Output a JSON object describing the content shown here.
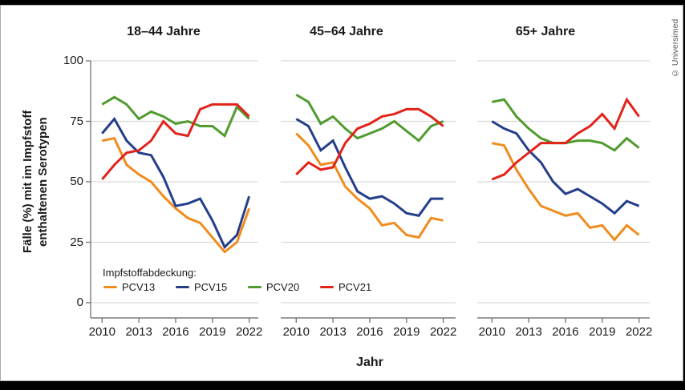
{
  "ui": {
    "copyright": "© Universimed",
    "colors": {
      "background": "#ffffff",
      "frame_bars": "#000000",
      "text": "#1a1a1a",
      "gridline": "#d9d9d9",
      "axis": "#7a7a7a"
    }
  },
  "chart_data": {
    "type": "line",
    "title": "",
    "xlabel": "Jahr",
    "ylabel": "Fälle (%) mit im Impfstoff enthaltenen Serotypen",
    "ylabel_lines": [
      "Fälle (%) mit im Impfstoff",
      "enthaltenen Serotypen"
    ],
    "legend_title": "Impfstoffabdeckung:",
    "legend_position": "bottom-left inside first panel",
    "grid": true,
    "ylim": [
      0,
      100
    ],
    "y_ticks": [
      100,
      75,
      50,
      25,
      0
    ],
    "x": [
      2010,
      2011,
      2012,
      2013,
      2014,
      2015,
      2016,
      2017,
      2018,
      2019,
      2020,
      2021,
      2022
    ],
    "x_tick_labels": [
      "2010",
      "2013",
      "2016",
      "2019",
      "2022"
    ],
    "series_order": [
      "PCV13",
      "PCV15",
      "PCV20",
      "PCV21"
    ],
    "series_colors": {
      "PCV13": "#F08C1E",
      "PCV15": "#243E8B",
      "PCV20": "#509B2F",
      "PCV21": "#E2231A"
    },
    "panels": [
      {
        "title": "18–44 Jahre",
        "series": {
          "PCV13": [
            67,
            68,
            57,
            53,
            50,
            44,
            39,
            35,
            33,
            27,
            21,
            25,
            39
          ],
          "PCV15": [
            70,
            76,
            67,
            62,
            61,
            52,
            40,
            41,
            43,
            34,
            23,
            28,
            44
          ],
          "PCV20": [
            82,
            85,
            82,
            76,
            79,
            77,
            74,
            75,
            73,
            73,
            69,
            81,
            76
          ],
          "PCV21": [
            51,
            57,
            62,
            63,
            67,
            75,
            70,
            69,
            80,
            82,
            82,
            82,
            77
          ]
        }
      },
      {
        "title": "45–64 Jahre",
        "series": {
          "PCV13": [
            70,
            65,
            57,
            58,
            48,
            43,
            39,
            32,
            33,
            28,
            27,
            35,
            34
          ],
          "PCV15": [
            76,
            73,
            63,
            67,
            56,
            46,
            43,
            44,
            41,
            37,
            36,
            43,
            43
          ],
          "PCV20": [
            86,
            83,
            74,
            77,
            72,
            68,
            70,
            72,
            75,
            71,
            67,
            73,
            75
          ],
          "PCV21": [
            53,
            58,
            55,
            56,
            66,
            72,
            74,
            77,
            78,
            80,
            80,
            77,
            73
          ]
        }
      },
      {
        "title": "65+ Jahre",
        "series": {
          "PCV13": [
            66,
            65,
            55,
            47,
            40,
            38,
            36,
            37,
            31,
            32,
            26,
            32,
            28
          ],
          "PCV15": [
            75,
            72,
            70,
            63,
            58,
            50,
            45,
            47,
            44,
            41,
            37,
            42,
            40
          ],
          "PCV20": [
            83,
            84,
            77,
            72,
            68,
            66,
            66,
            67,
            67,
            66,
            63,
            68,
            64
          ],
          "PCV21": [
            51,
            53,
            58,
            62,
            66,
            66,
            66,
            70,
            73,
            78,
            72,
            84,
            77
          ]
        }
      }
    ]
  }
}
